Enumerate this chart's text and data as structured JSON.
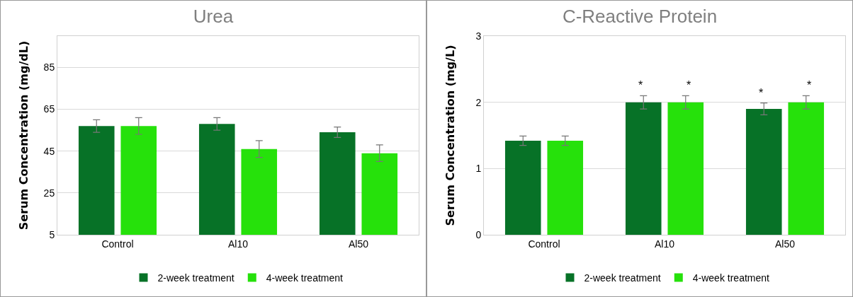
{
  "chart_data": [
    {
      "type": "bar",
      "title": "Urea",
      "ylabel": "Serum Concentration (mg/dL)",
      "categories": [
        "Control",
        "Al10",
        "Al50"
      ],
      "ylim": [
        5,
        100
      ],
      "yticks": [
        5,
        25,
        45,
        65,
        85
      ],
      "grid": "y",
      "legend": "bottom",
      "series": [
        {
          "name": "2-week treatment",
          "color": "#077227",
          "values": [
            57,
            58,
            54
          ],
          "errors": [
            3,
            3,
            2.5
          ]
        },
        {
          "name": "4-week treatment",
          "color": "#26e10b",
          "values": [
            57,
            46,
            44
          ],
          "errors": [
            4,
            4,
            4
          ]
        }
      ]
    },
    {
      "type": "bar",
      "title": "C-Reactive Protein",
      "ylabel": "Serum Concentration (mg/L)",
      "categories": [
        "Control",
        "Al10",
        "Al50"
      ],
      "ylim": [
        0,
        3
      ],
      "yticks": [
        0,
        1,
        2,
        3
      ],
      "grid": "y",
      "legend": "bottom",
      "series": [
        {
          "name": "2-week treatment",
          "color": "#077227",
          "values": [
            1.42,
            2.0,
            1.9
          ],
          "errors": [
            0.07,
            0.1,
            0.09
          ]
        },
        {
          "name": "4-week treatment",
          "color": "#26e10b",
          "values": [
            1.42,
            2.0,
            2.0
          ],
          "errors": [
            0.07,
            0.1,
            0.1
          ]
        }
      ],
      "annotations": [
        "*",
        "*",
        "*",
        "*"
      ]
    }
  ]
}
